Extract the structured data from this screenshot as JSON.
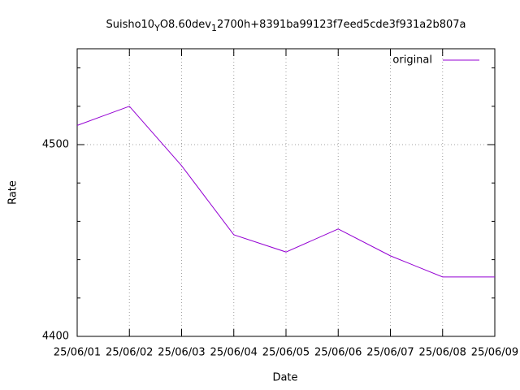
{
  "chart_data": {
    "type": "line",
    "title_parts": [
      "Suisho10",
      "Y",
      "O8.60dev",
      "1",
      "2700h+8391ba99123f7eed5cde3f931a2b807a"
    ],
    "x_label": "Date",
    "y_label": "Rate",
    "categories": [
      "25/06/01",
      "25/06/02",
      "25/06/03",
      "25/06/04",
      "25/06/05",
      "25/06/06",
      "25/06/07",
      "25/06/08",
      "25/06/09"
    ],
    "series": [
      {
        "name": "original",
        "color": "#9400d3",
        "values": [
          4510,
          4520,
          4489,
          4453,
          4444,
          4456,
          4442,
          4431,
          4431
        ]
      }
    ],
    "ylim": [
      4400,
      4550
    ],
    "yticks": [
      4400,
      4500
    ],
    "yminorticks": [
      4420,
      4440,
      4460,
      4480,
      4520,
      4540
    ],
    "grid": true,
    "legend": "top-right"
  }
}
